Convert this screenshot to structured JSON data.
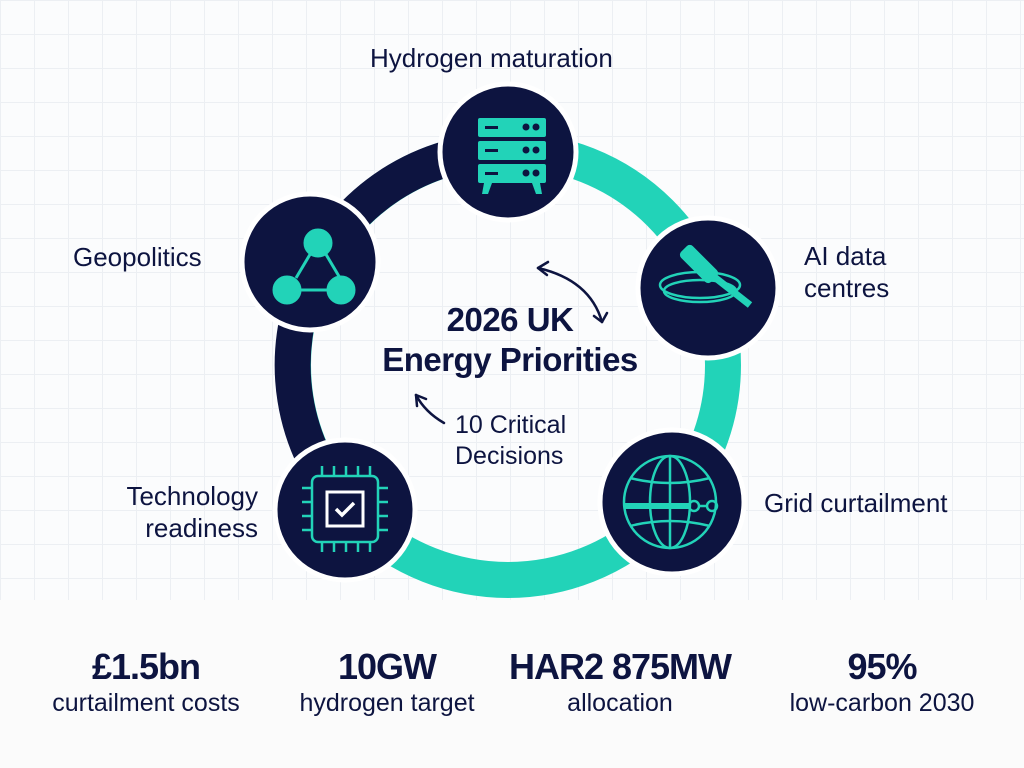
{
  "title": {
    "line1": "2026 UK",
    "line2": "Energy Priorities"
  },
  "subtitle": {
    "line1": "10 Critical",
    "line2": "Decisions"
  },
  "nodes": [
    {
      "label": "Hydrogen maturation",
      "icon": "server-rack-icon"
    },
    {
      "label_line1": "AI data",
      "label_line2": "centres",
      "icon": "gavel-icon"
    },
    {
      "label": "Grid curtailment",
      "icon": "globe-icon"
    },
    {
      "label_line1": "Technology",
      "label_line2": "readiness",
      "icon": "chip-check-icon"
    },
    {
      "label": "Geopolitics",
      "icon": "network-nodes-icon"
    }
  ],
  "stats": [
    {
      "value": "£1.5bn",
      "label": "curtailment costs"
    },
    {
      "value": "10GW",
      "label": "hydrogen target"
    },
    {
      "value": "HAR2 875MW",
      "label": "allocation"
    },
    {
      "value": "95%",
      "label": "low-carbon 2030"
    }
  ],
  "colors": {
    "navy": "#0d1440",
    "teal": "#22d3b8"
  }
}
